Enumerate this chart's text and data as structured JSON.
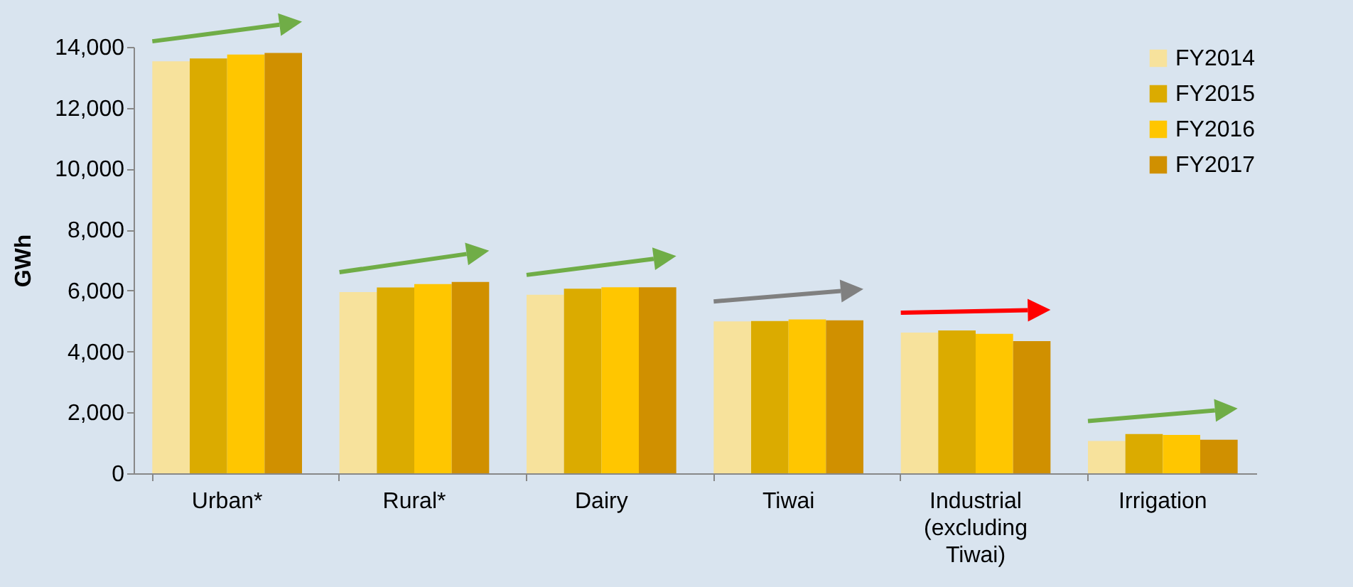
{
  "chart_data": {
    "type": "bar",
    "ylabel": "GWh",
    "categories": [
      "Urban*",
      "Rural*",
      "Dairy",
      "Tiwai",
      "Industrial (excluding Tiwai)",
      "Irrigation"
    ],
    "series": [
      {
        "name": "FY2014",
        "color": "#f7e29c",
        "values": [
          13530,
          5950,
          5860,
          4990,
          4620,
          1060
        ]
      },
      {
        "name": "FY2015",
        "color": "#dbab00",
        "values": [
          13620,
          6100,
          6060,
          5000,
          4690,
          1290
        ]
      },
      {
        "name": "FY2016",
        "color": "#ffc600",
        "values": [
          13750,
          6210,
          6110,
          5050,
          4580,
          1260
        ]
      },
      {
        "name": "FY2017",
        "color": "#d09000",
        "values": [
          13800,
          6280,
          6110,
          5020,
          4340,
          1100
        ]
      }
    ],
    "ylim": [
      0,
      14000
    ],
    "yticks": [
      0,
      {
        "value": 2000,
        "label": "2,000"
      },
      {
        "value": 4000,
        "label": "4,000"
      },
      {
        "value": 6000,
        "label": "6,000"
      },
      {
        "value": 8000,
        "label": "8,000"
      },
      {
        "value": 10000,
        "label": "10,000"
      },
      {
        "value": 12000,
        "label": "12,000"
      },
      {
        "value": 14000,
        "label": "14,000"
      }
    ],
    "grid": false,
    "legend": "top right"
  }
}
